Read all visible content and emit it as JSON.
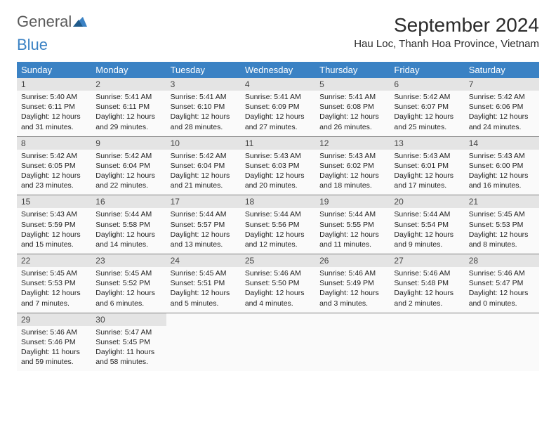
{
  "logo": {
    "part1": "General",
    "part2": "Blue"
  },
  "header": {
    "month_title": "September 2024",
    "location": "Hau Loc, Thanh Hoa Province, Vietnam"
  },
  "colors": {
    "header_bg": "#3b82c4",
    "header_text": "#ffffff",
    "daynum_bg": "#e4e4e4",
    "cell_bg": "#fafafa",
    "border": "#808080",
    "logo_gray": "#5a5a5a",
    "logo_blue": "#3b82c4"
  },
  "weekdays": [
    "Sunday",
    "Monday",
    "Tuesday",
    "Wednesday",
    "Thursday",
    "Friday",
    "Saturday"
  ],
  "days": [
    {
      "n": "1",
      "sr": "5:40 AM",
      "ss": "6:11 PM",
      "dl": "12 hours and 31 minutes."
    },
    {
      "n": "2",
      "sr": "5:41 AM",
      "ss": "6:11 PM",
      "dl": "12 hours and 29 minutes."
    },
    {
      "n": "3",
      "sr": "5:41 AM",
      "ss": "6:10 PM",
      "dl": "12 hours and 28 minutes."
    },
    {
      "n": "4",
      "sr": "5:41 AM",
      "ss": "6:09 PM",
      "dl": "12 hours and 27 minutes."
    },
    {
      "n": "5",
      "sr": "5:41 AM",
      "ss": "6:08 PM",
      "dl": "12 hours and 26 minutes."
    },
    {
      "n": "6",
      "sr": "5:42 AM",
      "ss": "6:07 PM",
      "dl": "12 hours and 25 minutes."
    },
    {
      "n": "7",
      "sr": "5:42 AM",
      "ss": "6:06 PM",
      "dl": "12 hours and 24 minutes."
    },
    {
      "n": "8",
      "sr": "5:42 AM",
      "ss": "6:05 PM",
      "dl": "12 hours and 23 minutes."
    },
    {
      "n": "9",
      "sr": "5:42 AM",
      "ss": "6:04 PM",
      "dl": "12 hours and 22 minutes."
    },
    {
      "n": "10",
      "sr": "5:42 AM",
      "ss": "6:04 PM",
      "dl": "12 hours and 21 minutes."
    },
    {
      "n": "11",
      "sr": "5:43 AM",
      "ss": "6:03 PM",
      "dl": "12 hours and 20 minutes."
    },
    {
      "n": "12",
      "sr": "5:43 AM",
      "ss": "6:02 PM",
      "dl": "12 hours and 18 minutes."
    },
    {
      "n": "13",
      "sr": "5:43 AM",
      "ss": "6:01 PM",
      "dl": "12 hours and 17 minutes."
    },
    {
      "n": "14",
      "sr": "5:43 AM",
      "ss": "6:00 PM",
      "dl": "12 hours and 16 minutes."
    },
    {
      "n": "15",
      "sr": "5:43 AM",
      "ss": "5:59 PM",
      "dl": "12 hours and 15 minutes."
    },
    {
      "n": "16",
      "sr": "5:44 AM",
      "ss": "5:58 PM",
      "dl": "12 hours and 14 minutes."
    },
    {
      "n": "17",
      "sr": "5:44 AM",
      "ss": "5:57 PM",
      "dl": "12 hours and 13 minutes."
    },
    {
      "n": "18",
      "sr": "5:44 AM",
      "ss": "5:56 PM",
      "dl": "12 hours and 12 minutes."
    },
    {
      "n": "19",
      "sr": "5:44 AM",
      "ss": "5:55 PM",
      "dl": "12 hours and 11 minutes."
    },
    {
      "n": "20",
      "sr": "5:44 AM",
      "ss": "5:54 PM",
      "dl": "12 hours and 9 minutes."
    },
    {
      "n": "21",
      "sr": "5:45 AM",
      "ss": "5:53 PM",
      "dl": "12 hours and 8 minutes."
    },
    {
      "n": "22",
      "sr": "5:45 AM",
      "ss": "5:53 PM",
      "dl": "12 hours and 7 minutes."
    },
    {
      "n": "23",
      "sr": "5:45 AM",
      "ss": "5:52 PM",
      "dl": "12 hours and 6 minutes."
    },
    {
      "n": "24",
      "sr": "5:45 AM",
      "ss": "5:51 PM",
      "dl": "12 hours and 5 minutes."
    },
    {
      "n": "25",
      "sr": "5:46 AM",
      "ss": "5:50 PM",
      "dl": "12 hours and 4 minutes."
    },
    {
      "n": "26",
      "sr": "5:46 AM",
      "ss": "5:49 PM",
      "dl": "12 hours and 3 minutes."
    },
    {
      "n": "27",
      "sr": "5:46 AM",
      "ss": "5:48 PM",
      "dl": "12 hours and 2 minutes."
    },
    {
      "n": "28",
      "sr": "5:46 AM",
      "ss": "5:47 PM",
      "dl": "12 hours and 0 minutes."
    },
    {
      "n": "29",
      "sr": "5:46 AM",
      "ss": "5:46 PM",
      "dl": "11 hours and 59 minutes."
    },
    {
      "n": "30",
      "sr": "5:47 AM",
      "ss": "5:45 PM",
      "dl": "11 hours and 58 minutes."
    }
  ],
  "labels": {
    "sunrise": "Sunrise:",
    "sunset": "Sunset:",
    "daylight": "Daylight:"
  }
}
